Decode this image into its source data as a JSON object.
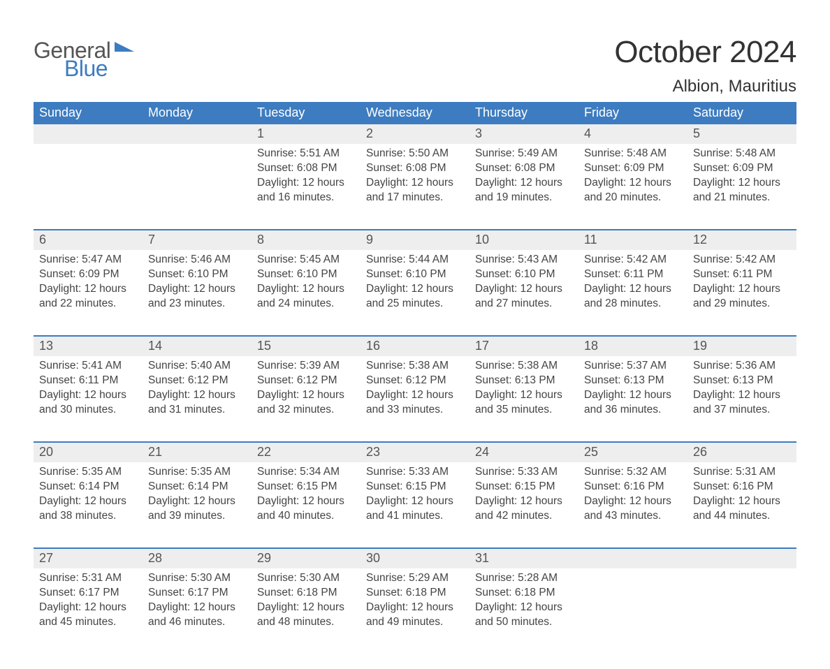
{
  "colors": {
    "header_bg": "#3d7cc0",
    "header_text": "#ffffff",
    "daynum_bg": "#eeeeee",
    "daynum_text": "#555555",
    "body_text": "#444444",
    "page_bg": "#ffffff",
    "week_divider": "#3d7cc0",
    "logo_gray": "#555555",
    "logo_blue": "#3d7cc0"
  },
  "typography": {
    "title_fontsize": 44,
    "location_fontsize": 24,
    "weekday_fontsize": 18,
    "daynum_fontsize": 18,
    "cell_fontsize": 15.5,
    "font_family": "Arial"
  },
  "logo": {
    "line1": "General",
    "line2": "Blue"
  },
  "title": "October 2024",
  "location": "Albion, Mauritius",
  "weekdays": [
    "Sunday",
    "Monday",
    "Tuesday",
    "Wednesday",
    "Thursday",
    "Friday",
    "Saturday"
  ],
  "weeks": [
    [
      {
        "n": "",
        "sunrise": "",
        "sunset": "",
        "daylight": ""
      },
      {
        "n": "",
        "sunrise": "",
        "sunset": "",
        "daylight": ""
      },
      {
        "n": "1",
        "sunrise": "5:51 AM",
        "sunset": "6:08 PM",
        "daylight": "12 hours and 16 minutes."
      },
      {
        "n": "2",
        "sunrise": "5:50 AM",
        "sunset": "6:08 PM",
        "daylight": "12 hours and 17 minutes."
      },
      {
        "n": "3",
        "sunrise": "5:49 AM",
        "sunset": "6:08 PM",
        "daylight": "12 hours and 19 minutes."
      },
      {
        "n": "4",
        "sunrise": "5:48 AM",
        "sunset": "6:09 PM",
        "daylight": "12 hours and 20 minutes."
      },
      {
        "n": "5",
        "sunrise": "5:48 AM",
        "sunset": "6:09 PM",
        "daylight": "12 hours and 21 minutes."
      }
    ],
    [
      {
        "n": "6",
        "sunrise": "5:47 AM",
        "sunset": "6:09 PM",
        "daylight": "12 hours and 22 minutes."
      },
      {
        "n": "7",
        "sunrise": "5:46 AM",
        "sunset": "6:10 PM",
        "daylight": "12 hours and 23 minutes."
      },
      {
        "n": "8",
        "sunrise": "5:45 AM",
        "sunset": "6:10 PM",
        "daylight": "12 hours and 24 minutes."
      },
      {
        "n": "9",
        "sunrise": "5:44 AM",
        "sunset": "6:10 PM",
        "daylight": "12 hours and 25 minutes."
      },
      {
        "n": "10",
        "sunrise": "5:43 AM",
        "sunset": "6:10 PM",
        "daylight": "12 hours and 27 minutes."
      },
      {
        "n": "11",
        "sunrise": "5:42 AM",
        "sunset": "6:11 PM",
        "daylight": "12 hours and 28 minutes."
      },
      {
        "n": "12",
        "sunrise": "5:42 AM",
        "sunset": "6:11 PM",
        "daylight": "12 hours and 29 minutes."
      }
    ],
    [
      {
        "n": "13",
        "sunrise": "5:41 AM",
        "sunset": "6:11 PM",
        "daylight": "12 hours and 30 minutes."
      },
      {
        "n": "14",
        "sunrise": "5:40 AM",
        "sunset": "6:12 PM",
        "daylight": "12 hours and 31 minutes."
      },
      {
        "n": "15",
        "sunrise": "5:39 AM",
        "sunset": "6:12 PM",
        "daylight": "12 hours and 32 minutes."
      },
      {
        "n": "16",
        "sunrise": "5:38 AM",
        "sunset": "6:12 PM",
        "daylight": "12 hours and 33 minutes."
      },
      {
        "n": "17",
        "sunrise": "5:38 AM",
        "sunset": "6:13 PM",
        "daylight": "12 hours and 35 minutes."
      },
      {
        "n": "18",
        "sunrise": "5:37 AM",
        "sunset": "6:13 PM",
        "daylight": "12 hours and 36 minutes."
      },
      {
        "n": "19",
        "sunrise": "5:36 AM",
        "sunset": "6:13 PM",
        "daylight": "12 hours and 37 minutes."
      }
    ],
    [
      {
        "n": "20",
        "sunrise": "5:35 AM",
        "sunset": "6:14 PM",
        "daylight": "12 hours and 38 minutes."
      },
      {
        "n": "21",
        "sunrise": "5:35 AM",
        "sunset": "6:14 PM",
        "daylight": "12 hours and 39 minutes."
      },
      {
        "n": "22",
        "sunrise": "5:34 AM",
        "sunset": "6:15 PM",
        "daylight": "12 hours and 40 minutes."
      },
      {
        "n": "23",
        "sunrise": "5:33 AM",
        "sunset": "6:15 PM",
        "daylight": "12 hours and 41 minutes."
      },
      {
        "n": "24",
        "sunrise": "5:33 AM",
        "sunset": "6:15 PM",
        "daylight": "12 hours and 42 minutes."
      },
      {
        "n": "25",
        "sunrise": "5:32 AM",
        "sunset": "6:16 PM",
        "daylight": "12 hours and 43 minutes."
      },
      {
        "n": "26",
        "sunrise": "5:31 AM",
        "sunset": "6:16 PM",
        "daylight": "12 hours and 44 minutes."
      }
    ],
    [
      {
        "n": "27",
        "sunrise": "5:31 AM",
        "sunset": "6:17 PM",
        "daylight": "12 hours and 45 minutes."
      },
      {
        "n": "28",
        "sunrise": "5:30 AM",
        "sunset": "6:17 PM",
        "daylight": "12 hours and 46 minutes."
      },
      {
        "n": "29",
        "sunrise": "5:30 AM",
        "sunset": "6:18 PM",
        "daylight": "12 hours and 48 minutes."
      },
      {
        "n": "30",
        "sunrise": "5:29 AM",
        "sunset": "6:18 PM",
        "daylight": "12 hours and 49 minutes."
      },
      {
        "n": "31",
        "sunrise": "5:28 AM",
        "sunset": "6:18 PM",
        "daylight": "12 hours and 50 minutes."
      },
      {
        "n": "",
        "sunrise": "",
        "sunset": "",
        "daylight": ""
      },
      {
        "n": "",
        "sunrise": "",
        "sunset": "",
        "daylight": ""
      }
    ]
  ],
  "labels": {
    "sunrise_prefix": "Sunrise: ",
    "sunset_prefix": "Sunset: ",
    "daylight_prefix": "Daylight: "
  }
}
